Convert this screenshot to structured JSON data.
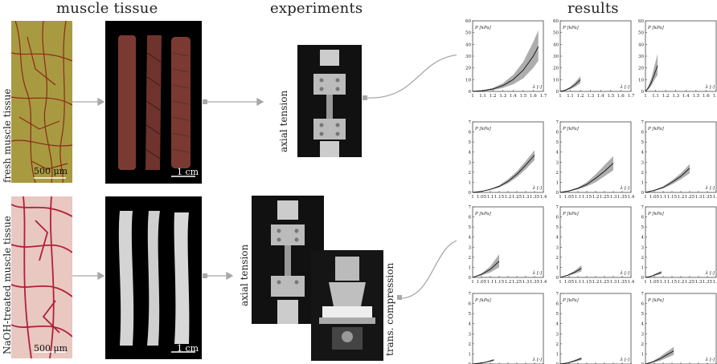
{
  "headers": {
    "muscle_tissue": "muscle tissue",
    "experiments": "experiments",
    "results": "results"
  },
  "row_labels": {
    "fresh": "fresh muscle tissue",
    "naoh": "NaOH-treated muscle tissue"
  },
  "scale_bars": {
    "histology": "500 μm",
    "specimen": "1 cm"
  },
  "experiment_labels": {
    "axial_tension": "axial tension",
    "trans_compression": "trans. compression"
  },
  "colors": {
    "fresh_histology_bg": "#a89a40",
    "fresh_histology_vein": "#8b2a18",
    "naoh_histology_bg": "#e8c8c0",
    "naoh_histology_vein": "#b0203a",
    "fresh_specimen": "#7a3a32",
    "naoh_specimen": "#d4d4d4",
    "band": "#8a8a8a",
    "arrow": "#a8a8a8"
  },
  "chart_data": [
    {
      "id": "p1",
      "type": "area",
      "panel_group": "fresh-axial",
      "ylabel": "P [kPa]",
      "xlabel": "λ [-]",
      "xlim": [
        1,
        1.7
      ],
      "ylim": [
        0,
        60
      ],
      "xticks": [
        1,
        1.1,
        1.2,
        1.3,
        1.4,
        1.5,
        1.6,
        1.7
      ],
      "yticks": [
        0,
        10,
        20,
        30,
        40,
        50,
        60
      ],
      "xtick_labels": [
        "1",
        "1.1",
        "1.2",
        "1.3",
        "1.4",
        "1.5",
        "1.6",
        "1.7"
      ],
      "ytick_labels": [
        "0",
        "10",
        "20",
        "30",
        "40",
        "50",
        "60"
      ],
      "curve": {
        "x": [
          1,
          1.1,
          1.2,
          1.3,
          1.4,
          1.5,
          1.6,
          1.65
        ],
        "mean": [
          0,
          0.6,
          2,
          5,
          10,
          18,
          30,
          38
        ],
        "lower": [
          0,
          0.3,
          1,
          3,
          6,
          11,
          20,
          26
        ],
        "upper": [
          0,
          0.9,
          3,
          7,
          14,
          25,
          42,
          52
        ]
      }
    },
    {
      "id": "p2",
      "type": "area",
      "panel_group": "fresh-axial",
      "ylabel": "P [kPa]",
      "xlabel": "λ [-]",
      "xlim": [
        1,
        1.7
      ],
      "ylim": [
        0,
        60
      ],
      "xticks": [
        1,
        1.1,
        1.2,
        1.3,
        1.4,
        1.5,
        1.6,
        1.7
      ],
      "yticks": [
        0,
        10,
        20,
        30,
        40,
        50,
        60
      ],
      "xtick_labels": [
        "1",
        "1.1",
        "1.2",
        "1.3",
        "1.4",
        "1.5",
        "1.6",
        "1.7"
      ],
      "ytick_labels": [
        "0",
        "10",
        "20",
        "30",
        "40",
        "50",
        "60"
      ],
      "curve": {
        "x": [
          1,
          1.05,
          1.1,
          1.15,
          1.2
        ],
        "mean": [
          0,
          1,
          3,
          6,
          10
        ],
        "lower": [
          0,
          0.6,
          2,
          4,
          7
        ],
        "upper": [
          0,
          1.5,
          4,
          8,
          13
        ]
      }
    },
    {
      "id": "p3",
      "type": "area",
      "panel_group": "fresh-axial",
      "ylabel": "P [kPa]",
      "xlabel": "λ [-]",
      "xlim": [
        1,
        1.7
      ],
      "ylim": [
        0,
        60
      ],
      "xticks": [
        1,
        1.1,
        1.2,
        1.3,
        1.4,
        1.5,
        1.6,
        1.7
      ],
      "yticks": [
        0,
        10,
        20,
        30,
        40,
        50,
        60
      ],
      "xtick_labels": [
        "1",
        "1.1",
        "1.2",
        "1.3",
        "1.4",
        "1.5",
        "1.6",
        "1.7"
      ],
      "ytick_labels": [
        "0",
        "10",
        "20",
        "30",
        "40",
        "50",
        "60"
      ],
      "curve": {
        "x": [
          1,
          1.03,
          1.06,
          1.09,
          1.12
        ],
        "mean": [
          0,
          3,
          8,
          15,
          22
        ],
        "lower": [
          0,
          2,
          5,
          10,
          14
        ],
        "upper": [
          0,
          5,
          12,
          22,
          32
        ]
      }
    },
    {
      "id": "p4",
      "type": "area",
      "panel_group": "naoh-axial",
      "ylabel": "P [kPa]",
      "xlabel": "λ [-]",
      "xlim": [
        1,
        1.4
      ],
      "ylim": [
        0,
        7
      ],
      "xticks": [
        1,
        1.05,
        1.1,
        1.15,
        1.2,
        1.25,
        1.3,
        1.35,
        1.4
      ],
      "yticks": [
        0,
        1,
        2,
        3,
        4,
        5,
        6,
        7
      ],
      "xtick_labels": [
        "1",
        "1.05",
        "1.1",
        "1.15",
        "1.2",
        "1.25",
        "1.3",
        "1.35",
        "1.4"
      ],
      "ytick_labels": [
        "0",
        "1",
        "2",
        "3",
        "4",
        "5",
        "6",
        "7"
      ],
      "curve": {
        "x": [
          1,
          1.05,
          1.1,
          1.15,
          1.2,
          1.25,
          1.3,
          1.35
        ],
        "mean": [
          0,
          0.1,
          0.3,
          0.6,
          1.1,
          1.8,
          2.7,
          3.7
        ],
        "lower": [
          0,
          0.08,
          0.25,
          0.5,
          0.9,
          1.5,
          2.3,
          3.2
        ],
        "upper": [
          0,
          0.12,
          0.35,
          0.7,
          1.3,
          2.1,
          3.1,
          4.2
        ]
      }
    },
    {
      "id": "p5",
      "type": "area",
      "panel_group": "naoh-axial",
      "ylabel": "P [kPa]",
      "xlabel": "λ [-]",
      "xlim": [
        1,
        1.4
      ],
      "ylim": [
        0,
        7
      ],
      "xticks": [
        1,
        1.05,
        1.1,
        1.15,
        1.2,
        1.25,
        1.3,
        1.35,
        1.4
      ],
      "yticks": [
        0,
        1,
        2,
        3,
        4,
        5,
        6,
        7
      ],
      "xtick_labels": [
        "1",
        "1.05",
        "1.1",
        "1.15",
        "1.2",
        "1.25",
        "1.3",
        "1.35",
        "1.4"
      ],
      "ytick_labels": [
        "0",
        "1",
        "2",
        "3",
        "4",
        "5",
        "6",
        "7"
      ],
      "curve": {
        "x": [
          1,
          1.05,
          1.1,
          1.15,
          1.2,
          1.25,
          1.3
        ],
        "mean": [
          0,
          0.15,
          0.4,
          0.8,
          1.4,
          2.1,
          2.9
        ],
        "lower": [
          0,
          0.1,
          0.3,
          0.6,
          1.0,
          1.6,
          2.2
        ],
        "upper": [
          0,
          0.2,
          0.5,
          1.0,
          1.8,
          2.7,
          3.6
        ]
      }
    },
    {
      "id": "p6",
      "type": "area",
      "panel_group": "naoh-axial",
      "ylabel": "P [kPa]",
      "xlabel": "λ [-]",
      "xlim": [
        1,
        1.4
      ],
      "ylim": [
        0,
        7
      ],
      "xticks": [
        1,
        1.05,
        1.1,
        1.15,
        1.2,
        1.25,
        1.3,
        1.35,
        1.4
      ],
      "yticks": [
        0,
        1,
        2,
        3,
        4,
        5,
        6,
        7
      ],
      "xtick_labels": [
        "1",
        "1.05",
        "1.1",
        "1.15",
        "1.2",
        "1.25",
        "1.3",
        "1.35",
        "1.4"
      ],
      "ytick_labels": [
        "0",
        "1",
        "2",
        "3",
        "4",
        "5",
        "6",
        "7"
      ],
      "curve": {
        "x": [
          1,
          1.05,
          1.1,
          1.15,
          1.2,
          1.25
        ],
        "mean": [
          0,
          0.2,
          0.5,
          1.0,
          1.6,
          2.4
        ],
        "lower": [
          0,
          0.15,
          0.4,
          0.8,
          1.3,
          1.9
        ],
        "upper": [
          0,
          0.25,
          0.6,
          1.2,
          1.9,
          2.8
        ]
      }
    },
    {
      "id": "p7",
      "type": "area",
      "panel_group": "naoh-compression",
      "ylabel": "P [kPa]",
      "xlabel": "λ [-]",
      "xlim": [
        1,
        1.4
      ],
      "ylim": [
        0,
        7
      ],
      "xticks": [
        1,
        1.05,
        1.1,
        1.15,
        1.2,
        1.25,
        1.3,
        1.35,
        1.4
      ],
      "yticks": [
        0,
        1,
        2,
        3,
        4,
        5,
        6,
        7
      ],
      "xtick_labels": [
        "1",
        "1.05",
        "1.1",
        "1.15",
        "1.2",
        "1.25",
        "1.3",
        "1.35",
        "1.4"
      ],
      "ytick_labels": [
        "0",
        "1",
        "2",
        "3",
        "4",
        "5",
        "6",
        "7"
      ],
      "curve": {
        "x": [
          1,
          1.05,
          1.1,
          1.15
        ],
        "mean": [
          0,
          0.3,
          0.8,
          1.6
        ],
        "lower": [
          0,
          0.2,
          0.5,
          1.0
        ],
        "upper": [
          0,
          0.4,
          1.1,
          2.3
        ]
      }
    },
    {
      "id": "p8",
      "type": "area",
      "panel_group": "naoh-compression",
      "ylabel": "P [kPa]",
      "xlabel": "λ [-]",
      "xlim": [
        1,
        1.4
      ],
      "ylim": [
        0,
        7
      ],
      "xticks": [
        1,
        1.05,
        1.1,
        1.15,
        1.2,
        1.25,
        1.3,
        1.35,
        1.4
      ],
      "yticks": [
        0,
        1,
        2,
        3,
        4,
        5,
        6,
        7
      ],
      "xtick_labels": [
        "1",
        "1.05",
        "1.1",
        "1.15",
        "1.2",
        "1.25",
        "1.3",
        "1.35",
        "1.4"
      ],
      "ytick_labels": [
        "0",
        "1",
        "2",
        "3",
        "4",
        "5",
        "6",
        "7"
      ],
      "curve": {
        "x": [
          1,
          1.04,
          1.08,
          1.12
        ],
        "mean": [
          0,
          0.2,
          0.5,
          0.9
        ],
        "lower": [
          0,
          0.15,
          0.35,
          0.6
        ],
        "upper": [
          0,
          0.25,
          0.65,
          1.2
        ]
      }
    },
    {
      "id": "p9",
      "type": "area",
      "panel_group": "naoh-compression",
      "ylabel": "P [kPa]",
      "xlabel": "λ [-]",
      "xlim": [
        1,
        1.4
      ],
      "ylim": [
        0,
        7
      ],
      "xticks": [
        1,
        1.05,
        1.1,
        1.15,
        1.2,
        1.25,
        1.3,
        1.35,
        1.4
      ],
      "yticks": [
        0,
        1,
        2,
        3,
        4,
        5,
        6,
        7
      ],
      "xtick_labels": [
        "1",
        "1.05",
        "1.1",
        "1.15",
        "1.2",
        "1.25",
        "1.3",
        "1.35",
        "1.4"
      ],
      "ytick_labels": [
        "0",
        "1",
        "2",
        "3",
        "4",
        "5",
        "6",
        "7"
      ],
      "curve": {
        "x": [
          1,
          1.03,
          1.06,
          1.09
        ],
        "mean": [
          0,
          0.1,
          0.3,
          0.5
        ],
        "lower": [
          0,
          0.07,
          0.2,
          0.35
        ],
        "upper": [
          0,
          0.13,
          0.4,
          0.65
        ]
      }
    },
    {
      "id": "p10",
      "type": "area",
      "panel_group": "naoh-compression",
      "ylabel": "P [kPa]",
      "xlabel": "λ [-]",
      "xlim": [
        1,
        1.4
      ],
      "ylim": [
        0,
        7
      ],
      "xticks": [
        1,
        1.05,
        1.1,
        1.15,
        1.2,
        1.25,
        1.3,
        1.35,
        1.4
      ],
      "yticks": [
        0,
        1,
        2,
        3,
        4,
        5,
        6,
        7
      ],
      "xtick_labels": [
        "1",
        "1.05",
        "1.1",
        "1.15",
        "1.2",
        "1.25",
        "1.3",
        "1.35",
        "1.4"
      ],
      "ytick_labels": [
        "0",
        "1",
        "2",
        "3",
        "4",
        "5",
        "6",
        "7"
      ],
      "curve": {
        "x": [
          1,
          1.04,
          1.08,
          1.12
        ],
        "mean": [
          0,
          0.08,
          0.2,
          0.4
        ],
        "lower": [
          0,
          0.05,
          0.15,
          0.3
        ],
        "upper": [
          0,
          0.11,
          0.25,
          0.5
        ]
      }
    },
    {
      "id": "p11",
      "type": "area",
      "panel_group": "naoh-compression",
      "ylabel": "P [kPa]",
      "xlabel": "λ [-]",
      "xlim": [
        1,
        1.4
      ],
      "ylim": [
        0,
        7
      ],
      "xticks": [
        1,
        1.05,
        1.1,
        1.15,
        1.2,
        1.25,
        1.3,
        1.35,
        1.4
      ],
      "yticks": [
        0,
        1,
        2,
        3,
        4,
        5,
        6,
        7
      ],
      "xtick_labels": [
        "1",
        "1.05",
        "1.1",
        "1.15",
        "1.2",
        "1.25",
        "1.3",
        "1.35",
        "1.4"
      ],
      "ytick_labels": [
        "0",
        "1",
        "2",
        "3",
        "4",
        "5",
        "6",
        "7"
      ],
      "curve": {
        "x": [
          1,
          1.04,
          1.08,
          1.12
        ],
        "mean": [
          0,
          0.1,
          0.3,
          0.55
        ],
        "lower": [
          0,
          0.07,
          0.2,
          0.4
        ],
        "upper": [
          0,
          0.13,
          0.4,
          0.7
        ]
      }
    },
    {
      "id": "p12",
      "type": "area",
      "panel_group": "naoh-compression",
      "ylabel": "P [kPa]",
      "xlabel": "λ [-]",
      "xlim": [
        1,
        1.4
      ],
      "ylim": [
        0,
        7
      ],
      "xticks": [
        1,
        1.05,
        1.1,
        1.15,
        1.2,
        1.25,
        1.3,
        1.35,
        1.4
      ],
      "yticks": [
        0,
        1,
        2,
        3,
        4,
        5,
        6,
        7
      ],
      "xtick_labels": [
        "1",
        "1.05",
        "1.1",
        "1.15",
        "1.2",
        "1.25",
        "1.3",
        "1.35",
        "1.4"
      ],
      "ytick_labels": [
        "0",
        "1",
        "2",
        "3",
        "4",
        "5",
        "6",
        "7"
      ],
      "curve": {
        "x": [
          1,
          1.04,
          1.08,
          1.12,
          1.16
        ],
        "mean": [
          0,
          0.2,
          0.5,
          0.9,
          1.3
        ],
        "lower": [
          0,
          0.12,
          0.3,
          0.6,
          0.9
        ],
        "upper": [
          0,
          0.28,
          0.7,
          1.2,
          1.7
        ]
      }
    }
  ]
}
